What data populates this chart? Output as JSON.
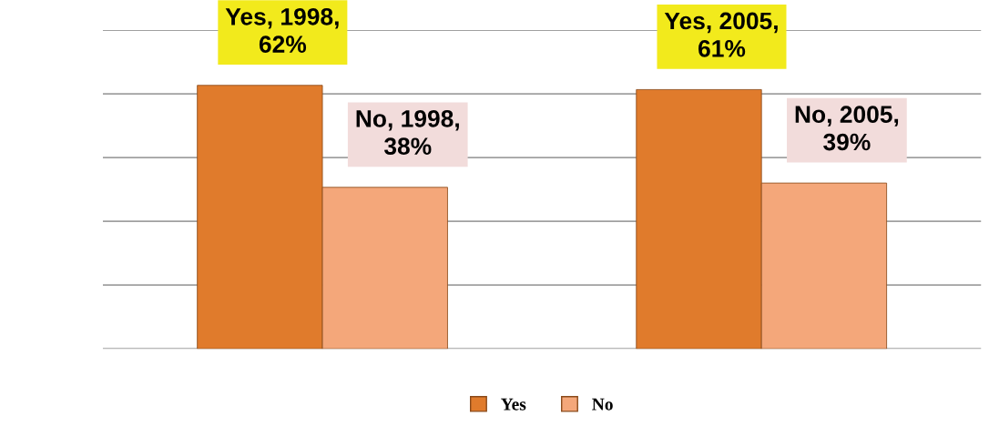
{
  "chart_data": {
    "type": "bar",
    "categories": [
      null,
      null
    ],
    "series": [
      {
        "name": "Yes",
        "color": "#e07b2c",
        "values": [
          62,
          61
        ],
        "value_labels": [
          "Yes, 1998,\n62%",
          "Yes, 2005,\n61%"
        ]
      },
      {
        "name": "No",
        "color": "#f4a77a",
        "values": [
          38,
          39
        ],
        "value_labels": [
          "No, 1998,\n38%",
          "No, 2005,\n39%"
        ]
      }
    ],
    "ylim": [
      0,
      75
    ],
    "yticks": [
      {
        "value": 0,
        "label": null
      },
      {
        "value": 15,
        "label": null
      },
      {
        "value": 30,
        "label": null
      },
      {
        "value": 45,
        "label": null
      },
      {
        "value": 60,
        "label": null
      },
      {
        "value": 75,
        "label": null
      }
    ],
    "grid": "y",
    "legend": "bottom"
  }
}
